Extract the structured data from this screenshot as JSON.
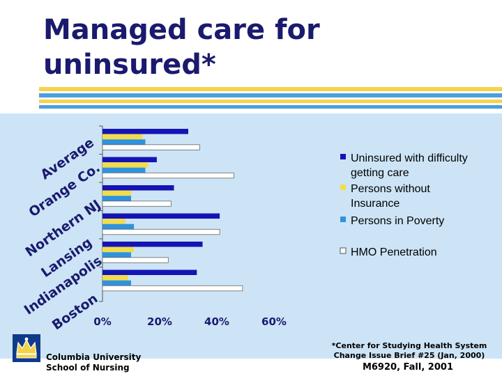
{
  "slide": {
    "title_line1": "Managed care for",
    "title_line2": "uninsured*",
    "colors": {
      "title": "#1a1a6e",
      "stripe_yellow": "#f6d34a",
      "stripe_blue": "#4a9fe0",
      "panel": "#cce4f6"
    }
  },
  "chart_data": {
    "type": "bar",
    "orientation": "horizontal",
    "categories": [
      "Average",
      "Orange Co.",
      "Northern NJ",
      "Lansing",
      "Indianapolis",
      "Boston"
    ],
    "series": [
      {
        "name": "Uninsured with difficulty getting care",
        "color": "#1414b4",
        "values": [
          30,
          19,
          25,
          41,
          35,
          33
        ]
      },
      {
        "name": "Persons without Insurance",
        "color": "#f3dc4c",
        "values": [
          14,
          16,
          10,
          8,
          11,
          9
        ]
      },
      {
        "name": "Persons in Poverty",
        "color": "#2f92dc",
        "values": [
          15,
          15,
          10,
          11,
          10,
          10
        ]
      },
      {
        "name": "HMO Penetration",
        "color": "#ffffff",
        "values": [
          34,
          46,
          24,
          41,
          23,
          49
        ]
      }
    ],
    "xticks": [
      "0%",
      "20%",
      "40%",
      "60%"
    ],
    "xlim": [
      0,
      60
    ],
    "legend_position": "right"
  },
  "footer": {
    "institution_line1": "Columbia University",
    "institution_line2": "School of Nursing",
    "note_line1": "*Center for Studying Health System",
    "note_line2": "Change Issue Brief #25 (Jan, 2000)",
    "course": "M6920, Fall, 2001"
  }
}
